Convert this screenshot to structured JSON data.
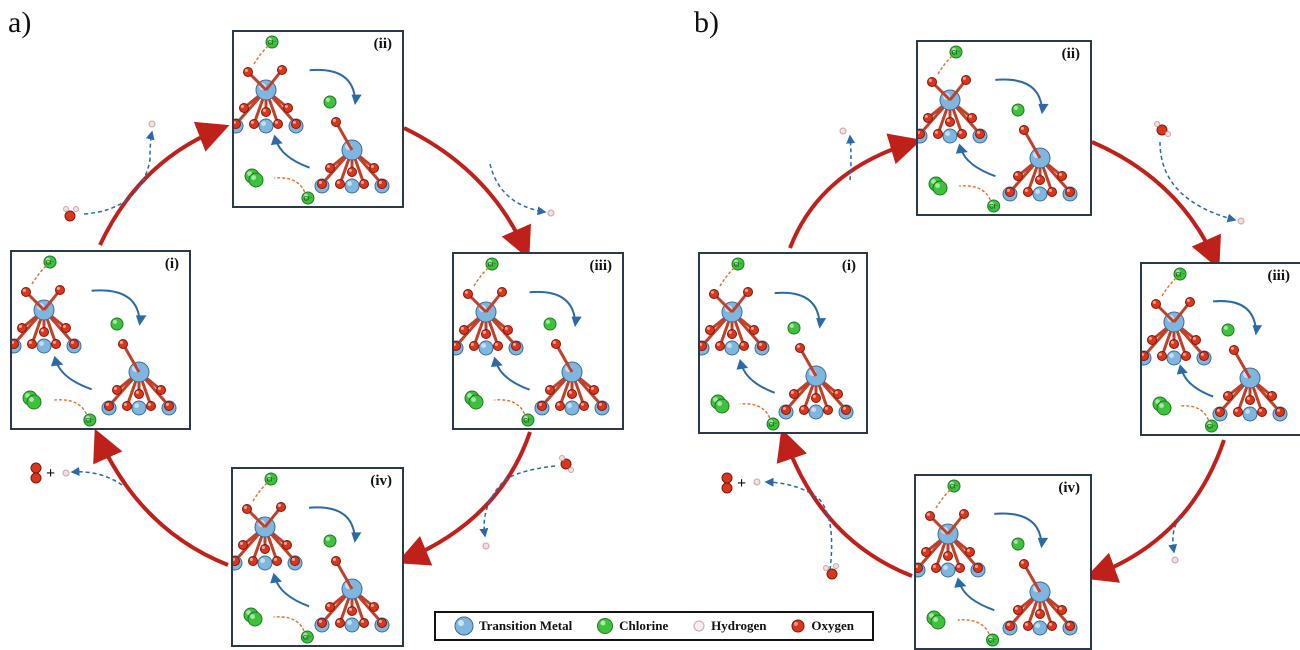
{
  "panels": [
    {
      "label": "a)",
      "steps": [
        "(i)",
        "(ii)",
        "(iii)",
        "(iv)"
      ],
      "product": "+"
    },
    {
      "label": "b)",
      "steps": [
        "(i)",
        "(ii)",
        "(iii)",
        "(iv)"
      ],
      "product": "+"
    }
  ],
  "ion_label": "Cl⁻",
  "legend": [
    {
      "label": "Transition Metal",
      "color": "#7fb6e0",
      "icon": "transition-metal-sphere"
    },
    {
      "label": "Chlorine",
      "color": "#3ec23e",
      "icon": "chlorine-sphere"
    },
    {
      "label": "Hydrogen",
      "color": "#f4dede",
      "icon": "hydrogen-sphere"
    },
    {
      "label": "Oxygen",
      "color": "#d9361c",
      "icon": "oxygen-sphere"
    }
  ],
  "colors": {
    "cycle_arrow": "#c0201a",
    "flow_arrow": "#2a6aa8",
    "ion_arrow": "#e0702a"
  }
}
